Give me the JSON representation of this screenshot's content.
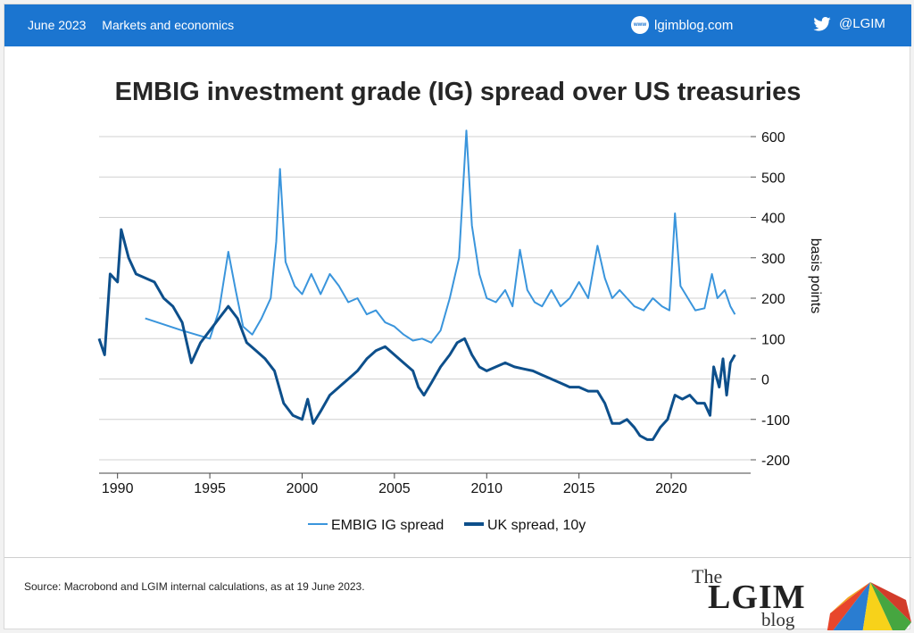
{
  "header": {
    "date": "June 2023",
    "category": "Markets and economics",
    "site": "lgimblog.com",
    "handle": "@LGIM",
    "globe_text": "www",
    "bg_color": "#1b75d0"
  },
  "icons": {
    "site": "globe-icon",
    "social": "twitter-icon"
  },
  "footer": {
    "source": "Source: Macrobond and LGIM internal calculations, as at 19 June 2023.",
    "brand_the": "The",
    "brand_lgim": "LGIM",
    "brand_blog": "blog"
  },
  "chart_data": {
    "type": "line",
    "title": "EMBIG investment grade (IG) spread over US treasuries",
    "ylabel": "basis points",
    "xlabel": "",
    "ylim": [
      -200,
      600
    ],
    "yticks": [
      600,
      500,
      400,
      300,
      200,
      100,
      0,
      -100,
      -200
    ],
    "xlim": [
      1989,
      2024.3
    ],
    "xticks": [
      1990,
      1995,
      2000,
      2005,
      2010,
      2015,
      2020
    ],
    "grid": true,
    "legend_position": "bottom",
    "series": [
      {
        "name": "EMBIG IG spread",
        "color": "#3a95dc",
        "x": [
          1991.5,
          1993.5,
          1995.0,
          1995.5,
          1996.0,
          1996.4,
          1996.8,
          1997.3,
          1997.8,
          1998.3,
          1998.6,
          1998.8,
          1999.1,
          1999.6,
          2000.0,
          2000.5,
          2001.0,
          2001.5,
          2002.0,
          2002.5,
          2003.0,
          2003.5,
          2004.0,
          2004.5,
          2005.0,
          2005.5,
          2006.0,
          2006.5,
          2007.0,
          2007.5,
          2008.0,
          2008.5,
          2008.9,
          2009.2,
          2009.6,
          2010.0,
          2010.5,
          2011.0,
          2011.4,
          2011.8,
          2012.2,
          2012.6,
          2013.0,
          2013.5,
          2014.0,
          2014.5,
          2015.0,
          2015.5,
          2016.0,
          2016.4,
          2016.8,
          2017.2,
          2017.6,
          2018.0,
          2018.5,
          2019.0,
          2019.5,
          2019.9,
          2020.2,
          2020.5,
          2020.9,
          2021.3,
          2021.8,
          2022.2,
          2022.5,
          2022.9,
          2023.2,
          2023.45
        ],
        "y": [
          150,
          120,
          100,
          170,
          315,
          220,
          130,
          110,
          150,
          200,
          340,
          520,
          290,
          230,
          210,
          260,
          210,
          260,
          230,
          190,
          200,
          160,
          170,
          140,
          130,
          110,
          95,
          100,
          90,
          120,
          200,
          300,
          615,
          380,
          260,
          200,
          190,
          220,
          180,
          320,
          220,
          190,
          180,
          220,
          180,
          200,
          240,
          200,
          330,
          250,
          200,
          220,
          200,
          180,
          170,
          200,
          180,
          170,
          410,
          230,
          200,
          170,
          175,
          260,
          200,
          220,
          180,
          160
        ]
      },
      {
        "name": "UK spread, 10y",
        "color": "#0d4f8b",
        "x": [
          1989.0,
          1989.3,
          1989.6,
          1990.0,
          1990.2,
          1990.6,
          1991.0,
          1991.5,
          1992.0,
          1992.5,
          1993.0,
          1993.5,
          1994.0,
          1994.5,
          1995.0,
          1995.5,
          1996.0,
          1996.5,
          1997.0,
          1997.5,
          1998.0,
          1998.5,
          1999.0,
          1999.5,
          2000.0,
          2000.3,
          2000.6,
          2001.0,
          2001.5,
          2002.0,
          2002.5,
          2003.0,
          2003.5,
          2004.0,
          2004.5,
          2005.0,
          2005.5,
          2006.0,
          2006.3,
          2006.6,
          2007.0,
          2007.5,
          2008.0,
          2008.4,
          2008.8,
          2009.2,
          2009.6,
          2010.0,
          2010.5,
          2011.0,
          2011.5,
          2012.0,
          2012.5,
          2013.0,
          2013.5,
          2014.0,
          2014.5,
          2015.0,
          2015.5,
          2016.0,
          2016.4,
          2016.8,
          2017.2,
          2017.6,
          2018.0,
          2018.3,
          2018.7,
          2019.0,
          2019.4,
          2019.8,
          2020.2,
          2020.6,
          2021.0,
          2021.4,
          2021.8,
          2022.1,
          2022.3,
          2022.6,
          2022.8,
          2023.0,
          2023.2,
          2023.45
        ],
        "y": [
          100,
          60,
          260,
          240,
          370,
          300,
          260,
          250,
          240,
          200,
          180,
          140,
          40,
          90,
          120,
          150,
          180,
          150,
          90,
          70,
          50,
          20,
          -60,
          -90,
          -100,
          -50,
          -110,
          -80,
          -40,
          -20,
          0,
          20,
          50,
          70,
          80,
          60,
          40,
          20,
          -20,
          -40,
          -10,
          30,
          60,
          90,
          100,
          60,
          30,
          20,
          30,
          40,
          30,
          25,
          20,
          10,
          0,
          -10,
          -20,
          -20,
          -30,
          -30,
          -60,
          -110,
          -110,
          -100,
          -120,
          -140,
          -150,
          -150,
          -120,
          -100,
          -40,
          -50,
          -40,
          -60,
          -60,
          -90,
          30,
          -20,
          50,
          -40,
          40,
          60
        ]
      }
    ]
  }
}
